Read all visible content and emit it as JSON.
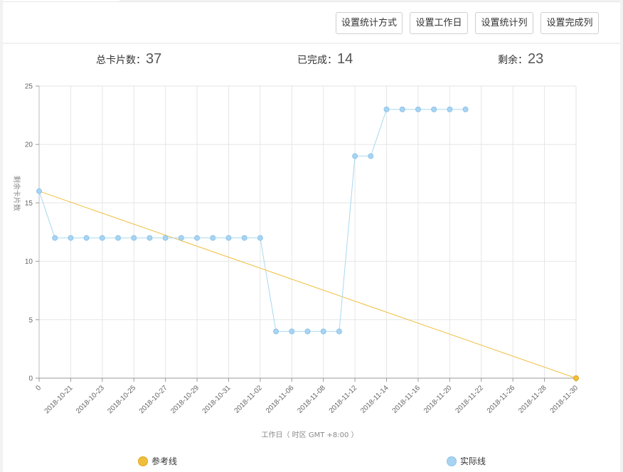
{
  "toolbar": {
    "buttons": [
      {
        "label": "设置统计方式"
      },
      {
        "label": "设置工作日"
      },
      {
        "label": "设置统计列"
      },
      {
        "label": "设置完成列"
      }
    ]
  },
  "summary": {
    "total_label": "总卡片数：",
    "total_value": "37",
    "done_label": "已完成：",
    "done_value": "14",
    "remain_label": "剩余：",
    "remain_value": "23"
  },
  "colors": {
    "reference": "#f0be3c",
    "actual": "#a8d4f2",
    "actual_line": "#a8d8f0",
    "grid": "#e6e6e6",
    "axis": "#999999"
  },
  "chart_data": {
    "type": "line",
    "xlabel": "工作日（ 时区 GMT +8:00 ）",
    "ylabel": "剩余卡片数",
    "ylim": [
      0,
      25
    ],
    "yticks": [
      0,
      5,
      10,
      15,
      20,
      25
    ],
    "x_start": "2018-10-20",
    "x_tick_labels": [
      "0",
      "2018-10-21",
      "2018-10-23",
      "2018-10-25",
      "2018-10-27",
      "2018-10-29",
      "2018-10-31",
      "2018-11-02",
      "2018-11-06",
      "2018-11-08",
      "2018-11-12",
      "2018-11-14",
      "2018-11-16",
      "2018-11-20",
      "2018-11-22",
      "2018-11-26",
      "2018-11-28",
      "2018-11-30"
    ],
    "x_tick_count": 18,
    "x_slots": 34,
    "legend_position": "bottom",
    "series": [
      {
        "name": "参考线",
        "color": "#f0be3c",
        "points": [
          [
            0,
            16
          ],
          [
            34,
            0
          ]
        ]
      },
      {
        "name": "实际线",
        "color": "#a8d4f2",
        "values": [
          16,
          12,
          12,
          12,
          12,
          12,
          12,
          12,
          12,
          12,
          12,
          12,
          12,
          12,
          12,
          4,
          4,
          4,
          4,
          4,
          19,
          19,
          23,
          23,
          23,
          23,
          23,
          23
        ]
      }
    ]
  }
}
